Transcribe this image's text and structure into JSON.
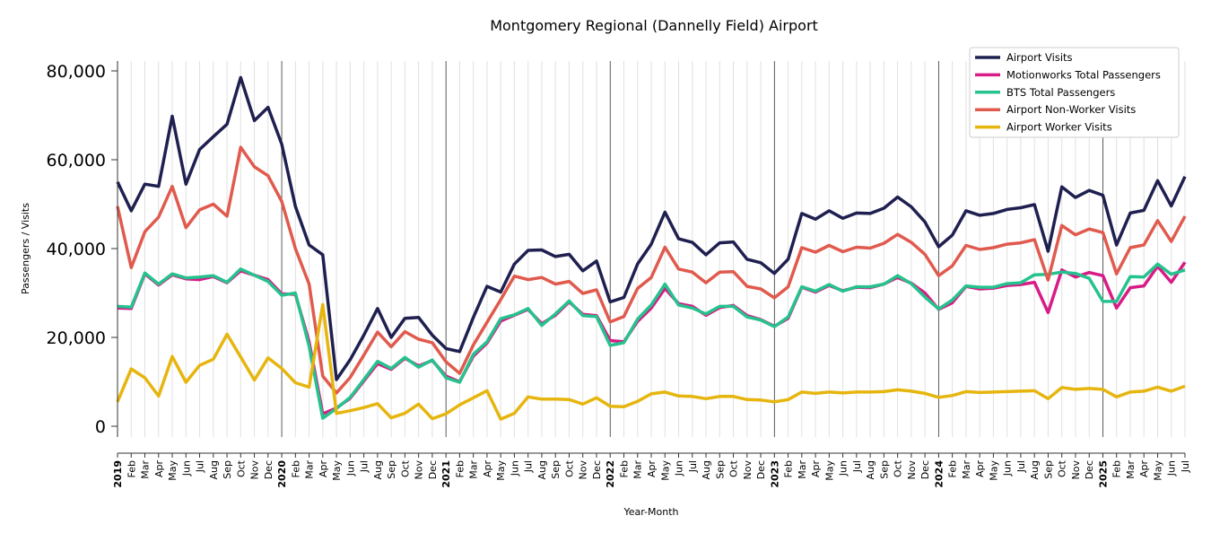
{
  "chart_data": {
    "type": "line",
    "title": "Montgomery Regional (Dannelly Field) Airport",
    "xlabel": "Year-Month",
    "ylabel": "Passengers / Visits",
    "ylim": [
      -6000,
      82000
    ],
    "yticks": [
      0,
      20000,
      40000,
      60000,
      80000
    ],
    "ytick_labels": [
      "0",
      "20,000",
      "40,000",
      "60,000",
      "80,000"
    ],
    "grid": "vertical monthly gridlines, darker year separators",
    "legend_placement": "top-right",
    "categories": [
      "2019",
      "Feb",
      "Mar",
      "Apr",
      "May",
      "Jun",
      "Jul",
      "Aug",
      "Sep",
      "Oct",
      "Nov",
      "Dec",
      "2020",
      "Feb",
      "Mar",
      "Apr",
      "May",
      "Jun",
      "Jul",
      "Aug",
      "Sep",
      "Oct",
      "Nov",
      "Dec",
      "2021",
      "Feb",
      "Mar",
      "Apr",
      "May",
      "Jun",
      "Jul",
      "Aug",
      "Sep",
      "Oct",
      "Nov",
      "Dec",
      "2022",
      "Feb",
      "Mar",
      "Apr",
      "May",
      "Jun",
      "Jul",
      "Aug",
      "Sep",
      "Oct",
      "Nov",
      "Dec",
      "2023",
      "Feb",
      "Mar",
      "Apr",
      "May",
      "Jun",
      "Jul",
      "Aug",
      "Sep",
      "Oct",
      "Nov",
      "Dec",
      "2024",
      "Feb",
      "Mar",
      "Apr",
      "May",
      "Jun",
      "Jul",
      "Aug",
      "Sep",
      "Oct",
      "Nov",
      "Dec",
      "2025",
      "Feb",
      "Mar",
      "Apr",
      "May",
      "Jun",
      "Jul"
    ],
    "series": [
      {
        "name": "Airport Visits",
        "color": "#1f2050",
        "values": [
          55000,
          48500,
          54500,
          54000,
          69800,
          54500,
          62300,
          65200,
          68000,
          78500,
          68800,
          71800,
          63500,
          49500,
          40800,
          38600,
          10500,
          15000,
          20500,
          26500,
          20000,
          24300,
          24500,
          20500,
          17500,
          16800,
          24500,
          31500,
          30200,
          36500,
          39600,
          39700,
          38200,
          38700,
          35000,
          37200,
          28000,
          29000,
          36500,
          41000,
          48200,
          42200,
          41400,
          38600,
          41300,
          41500,
          37600,
          36800,
          34400,
          37600,
          47900,
          46600,
          48500,
          46800,
          48000,
          47900,
          49100,
          51600,
          49400,
          46000,
          40400,
          43000,
          48500,
          47500,
          47900,
          48800,
          49200,
          49900,
          39400,
          53900,
          51500,
          53100,
          52000,
          40800,
          48000,
          48600,
          55300,
          49600,
          56200
        ]
      },
      {
        "name": "Motionworks Total Passengers",
        "color": "#d81b85",
        "values": [
          26600,
          26500,
          34300,
          31800,
          34100,
          33200,
          33000,
          33700,
          32300,
          35000,
          34000,
          33000,
          29800,
          29700,
          19000,
          2800,
          4100,
          6300,
          10200,
          14100,
          12800,
          15300,
          13600,
          14800,
          11300,
          10000,
          15800,
          18700,
          23700,
          25000,
          26300,
          23100,
          25000,
          28000,
          25200,
          24900,
          19300,
          19000,
          23600,
          26600,
          31000,
          27600,
          27000,
          25000,
          26700,
          27200,
          24900,
          24000,
          22500,
          24300,
          31300,
          30200,
          31700,
          30500,
          31300,
          31200,
          32000,
          33500,
          32200,
          30000,
          26300,
          27800,
          31500,
          30900,
          31100,
          31700,
          31900,
          32400,
          25600,
          35200,
          33600,
          34600,
          33900,
          26600,
          31200,
          31600,
          36000,
          32400,
          36900
        ]
      },
      {
        "name": "BTS Total Passengers",
        "color": "#26c28e",
        "values": [
          27000,
          26800,
          34500,
          32000,
          34300,
          33400,
          33600,
          33900,
          32400,
          35400,
          34000,
          32600,
          29500,
          30000,
          18000,
          1800,
          4000,
          6500,
          10500,
          14600,
          13000,
          15500,
          13300,
          14900,
          10900,
          9900,
          16200,
          19000,
          24200,
          25100,
          26500,
          22700,
          25300,
          28200,
          24900,
          24700,
          18200,
          18800,
          24100,
          27300,
          32000,
          27300,
          26600,
          25300,
          27000,
          27000,
          24600,
          23900,
          22400,
          24600,
          31400,
          30400,
          31900,
          30400,
          31400,
          31400,
          32000,
          33900,
          32100,
          29100,
          26400,
          28400,
          31600,
          31300,
          31300,
          32100,
          32300,
          34100,
          34200,
          34700,
          34400,
          33300,
          28100,
          28100,
          33700,
          33600,
          36500,
          34200,
          35200
        ]
      },
      {
        "name": "Airport Non-Worker Visits",
        "color": "#e05a4e",
        "values": [
          49500,
          35700,
          43800,
          47100,
          54000,
          44700,
          48700,
          50000,
          47300,
          62800,
          58400,
          56400,
          50600,
          40000,
          32000,
          11300,
          7500,
          11000,
          16000,
          21200,
          17900,
          21300,
          19600,
          18800,
          14500,
          11900,
          18300,
          23400,
          28500,
          33800,
          33000,
          33500,
          32000,
          32600,
          29900,
          30700,
          23500,
          24700,
          31000,
          33500,
          40300,
          35400,
          34700,
          32300,
          34700,
          34800,
          31500,
          30900,
          28900,
          31400,
          40200,
          39200,
          40700,
          39300,
          40300,
          40100,
          41200,
          43200,
          41400,
          38700,
          33900,
          36100,
          40700,
          39800,
          40200,
          41000,
          41300,
          42000,
          32900,
          45200,
          43100,
          44400,
          43600,
          34300,
          40200,
          40800,
          46300,
          41600,
          47300
        ]
      },
      {
        "name": "Airport Worker Visits",
        "color": "#e6b50e",
        "values": [
          5500,
          12900,
          10900,
          6800,
          15700,
          9900,
          13700,
          15100,
          20700,
          15600,
          10400,
          15400,
          13000,
          9800,
          8800,
          27400,
          2900,
          3500,
          4200,
          5100,
          1900,
          2900,
          5000,
          1700,
          2800,
          4800,
          6400,
          8000,
          1600,
          2900,
          6600,
          6100,
          6100,
          6000,
          5000,
          6400,
          4500,
          4400,
          5600,
          7300,
          7700,
          6800,
          6700,
          6200,
          6700,
          6700,
          6000,
          5900,
          5500,
          6000,
          7700,
          7400,
          7700,
          7500,
          7700,
          7700,
          7800,
          8200,
          7900,
          7400,
          6500,
          6900,
          7800,
          7600,
          7700,
          7800,
          7900,
          8000,
          6200,
          8700,
          8300,
          8500,
          8300,
          6600,
          7700,
          7900,
          8800,
          7900,
          9000
        ]
      }
    ]
  }
}
